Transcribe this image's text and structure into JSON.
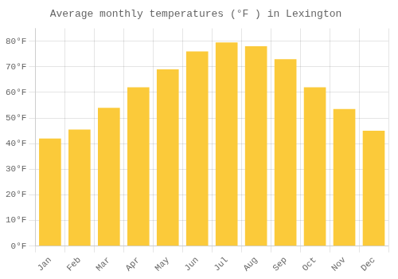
{
  "chart_data": {
    "type": "bar",
    "title": "Average monthly temperatures (°F ) in Lexington",
    "categories": [
      "Jan",
      "Feb",
      "Mar",
      "Apr",
      "May",
      "Jun",
      "Jul",
      "Aug",
      "Sep",
      "Oct",
      "Nov",
      "Dec"
    ],
    "values": [
      42,
      45.5,
      54,
      62,
      69,
      76,
      79.5,
      78,
      73,
      62,
      53.5,
      45
    ],
    "color": "#FBCA3A",
    "ylim": [
      0,
      85
    ],
    "yticks": [
      {
        "value": 0,
        "label": "0°F"
      },
      {
        "value": 10,
        "label": "10°F"
      },
      {
        "value": 20,
        "label": "20°F"
      },
      {
        "value": 30,
        "label": "30°F"
      },
      {
        "value": 40,
        "label": "40°F"
      },
      {
        "value": 50,
        "label": "50°F"
      },
      {
        "value": 60,
        "label": "60°F"
      },
      {
        "value": 70,
        "label": "70°F"
      },
      {
        "value": 80,
        "label": "80°F"
      }
    ],
    "grid": true
  }
}
